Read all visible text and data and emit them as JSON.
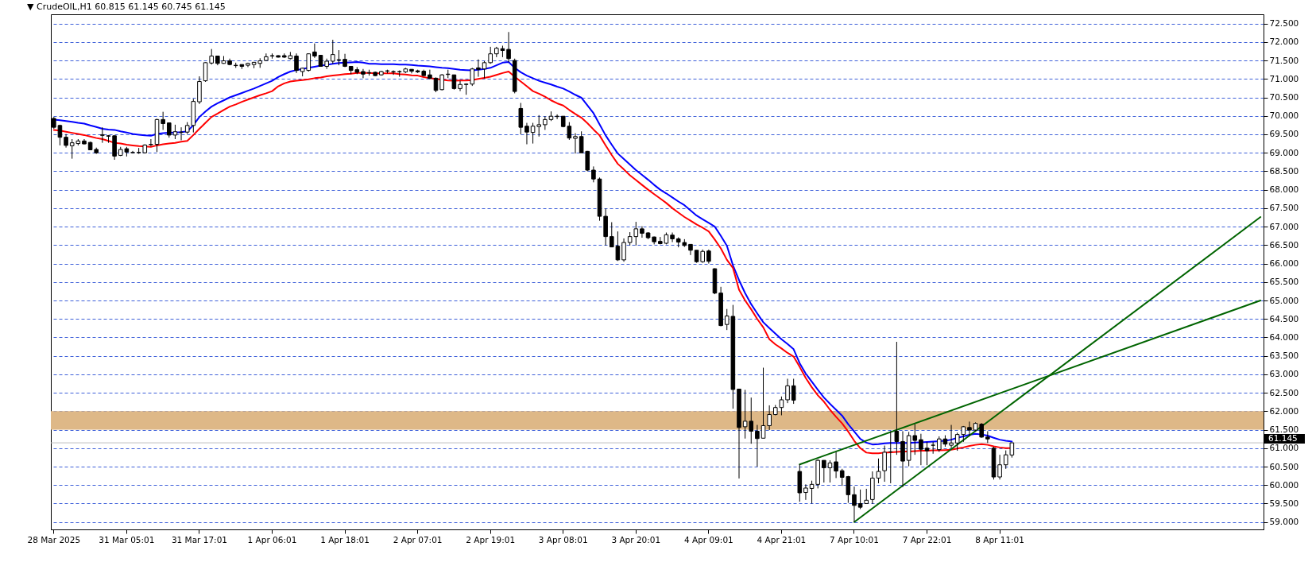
{
  "chart_data": {
    "type": "candlestick",
    "title": "▼ CrudeOIL,H1  60.815 61.145 60.745 61.145",
    "categories": [
      "28 Mar 2025",
      null,
      null,
      null,
      null,
      null,
      null,
      null,
      null,
      null,
      null,
      null,
      "31 Mar 05:01",
      null,
      null,
      null,
      null,
      null,
      null,
      null,
      null,
      null,
      null,
      null,
      "31 Mar 17:01",
      null,
      null,
      null,
      null,
      null,
      null,
      null,
      null,
      null,
      null,
      null,
      "1 Apr 06:01",
      null,
      null,
      null,
      null,
      null,
      null,
      null,
      null,
      null,
      null,
      null,
      "1 Apr 18:01",
      null,
      null,
      null,
      null,
      null,
      null,
      null,
      null,
      null,
      null,
      null,
      "2 Apr 07:01",
      null,
      null,
      null,
      null,
      null,
      null,
      null,
      null,
      null,
      null,
      null,
      "2 Apr 19:01",
      null,
      null,
      null,
      null,
      null,
      null,
      null,
      null,
      null,
      null,
      null,
      "3 Apr 08:01",
      null,
      null,
      null,
      null,
      null,
      null,
      null,
      null,
      null,
      null,
      null,
      "3 Apr 20:01",
      null,
      null,
      null,
      null,
      null,
      null,
      null,
      null,
      null,
      null,
      null,
      "4 Apr 09:01",
      null,
      null,
      null,
      null,
      null,
      null,
      null,
      null,
      null,
      null,
      null,
      "4 Apr 21:01",
      null,
      null,
      null,
      null,
      null,
      null,
      null,
      null,
      null,
      null,
      null,
      "7 Apr 10:01",
      null,
      null,
      null,
      null,
      null,
      null,
      null,
      null,
      null,
      null,
      null,
      "7 Apr 22:01",
      null,
      null,
      null,
      null,
      null,
      null,
      null,
      null,
      null,
      null,
      null,
      "8 Apr 11:01",
      null,
      null,
      null,
      null,
      null,
      null,
      null,
      null,
      null,
      null,
      null,
      null,
      null,
      null,
      null,
      null,
      null,
      null,
      null,
      null,
      null,
      null,
      null,
      null,
      null,
      null,
      null,
      null,
      null,
      null,
      null,
      null,
      null,
      null,
      null,
      null,
      null,
      null,
      null,
      null,
      null,
      null,
      null
    ],
    "ohlc": [
      [
        69.93,
        69.97,
        69.65,
        69.69
      ],
      [
        69.74,
        69.76,
        69.2,
        69.42
      ],
      [
        69.42,
        69.51,
        69.14,
        69.2
      ],
      [
        69.19,
        69.37,
        68.84,
        69.27
      ],
      [
        69.25,
        69.37,
        69.2,
        69.32
      ],
      [
        69.32,
        69.37,
        69.23,
        69.24
      ],
      [
        69.28,
        69.3,
        69.08,
        69.08
      ],
      [
        69.09,
        69.14,
        68.97,
        69.0
      ],
      [
        69.47,
        69.69,
        69.27,
        69.49
      ],
      [
        69.46,
        69.48,
        69.27,
        69.45
      ],
      [
        69.46,
        69.47,
        68.81,
        68.91
      ],
      [
        68.93,
        69.16,
        68.91,
        69.09
      ],
      [
        69.11,
        69.16,
        68.9,
        69.02
      ],
      [
        69.0,
        69.05,
        68.98,
        69.01
      ],
      [
        69.0,
        69.13,
        68.97,
        69.01
      ],
      [
        69.0,
        69.23,
        68.98,
        69.21
      ],
      [
        69.22,
        69.37,
        69.18,
        69.23
      ],
      [
        69.23,
        69.92,
        69.02,
        69.9
      ],
      [
        69.9,
        70.11,
        69.62,
        69.79
      ],
      [
        69.81,
        69.82,
        69.41,
        69.48
      ],
      [
        69.48,
        69.76,
        69.37,
        69.57
      ],
      [
        69.55,
        69.69,
        69.34,
        69.56
      ],
      [
        69.56,
        69.83,
        69.51,
        69.74
      ],
      [
        69.74,
        70.46,
        69.55,
        70.39
      ],
      [
        70.38,
        71.07,
        70.32,
        70.93
      ],
      [
        70.95,
        71.45,
        70.92,
        71.44
      ],
      [
        71.43,
        71.81,
        71.39,
        71.62
      ],
      [
        71.62,
        71.63,
        71.37,
        71.42
      ],
      [
        71.42,
        71.62,
        71.41,
        71.49
      ],
      [
        71.49,
        71.55,
        71.37,
        71.39
      ],
      [
        71.37,
        71.44,
        71.3,
        71.36
      ],
      [
        71.39,
        71.39,
        71.27,
        71.34
      ],
      [
        71.37,
        71.44,
        71.32,
        71.42
      ],
      [
        71.39,
        71.46,
        71.29,
        71.45
      ],
      [
        71.42,
        71.56,
        71.3,
        71.49
      ],
      [
        71.5,
        71.69,
        71.48,
        71.6
      ],
      [
        71.62,
        71.69,
        71.55,
        71.63
      ],
      [
        71.63,
        71.64,
        71.58,
        71.59
      ],
      [
        71.63,
        71.69,
        71.57,
        71.59
      ],
      [
        71.55,
        71.73,
        71.53,
        71.63
      ],
      [
        71.62,
        71.69,
        71.16,
        71.23
      ],
      [
        71.2,
        71.3,
        71.07,
        71.29
      ],
      [
        71.23,
        71.69,
        71.2,
        71.68
      ],
      [
        71.73,
        71.96,
        71.57,
        71.62
      ],
      [
        71.64,
        71.65,
        71.33,
        71.34
      ],
      [
        71.34,
        71.55,
        71.27,
        71.48
      ],
      [
        71.48,
        72.06,
        71.41,
        71.66
      ],
      [
        71.52,
        71.78,
        71.37,
        71.51
      ],
      [
        71.53,
        71.68,
        71.32,
        71.34
      ],
      [
        71.34,
        71.34,
        71.13,
        71.23
      ],
      [
        71.25,
        71.32,
        71.13,
        71.18
      ],
      [
        71.2,
        71.27,
        71.02,
        71.13
      ],
      [
        71.16,
        71.25,
        71.09,
        71.17
      ],
      [
        71.18,
        71.2,
        71.08,
        71.09
      ],
      [
        71.11,
        71.22,
        71.09,
        71.2
      ],
      [
        71.21,
        71.25,
        71.15,
        71.22
      ],
      [
        71.19,
        71.23,
        71.11,
        71.2
      ],
      [
        71.19,
        71.23,
        71.06,
        71.2
      ],
      [
        71.19,
        71.3,
        71.16,
        71.27
      ],
      [
        71.26,
        71.26,
        71.15,
        71.21
      ],
      [
        71.22,
        71.25,
        71.16,
        71.19
      ],
      [
        71.21,
        71.25,
        71.08,
        71.09
      ],
      [
        71.11,
        71.25,
        70.99,
        71.02
      ],
      [
        71.02,
        71.04,
        70.64,
        70.69
      ],
      [
        70.71,
        71.13,
        70.69,
        71.11
      ],
      [
        71.12,
        71.25,
        71.02,
        71.13
      ],
      [
        71.11,
        71.11,
        70.71,
        70.74
      ],
      [
        70.74,
        70.95,
        70.67,
        70.85
      ],
      [
        70.85,
        70.88,
        70.57,
        70.86
      ],
      [
        70.86,
        71.3,
        70.81,
        71.27
      ],
      [
        71.3,
        71.53,
        71.06,
        71.26
      ],
      [
        71.27,
        71.48,
        71.02,
        71.44
      ],
      [
        71.44,
        71.87,
        71.41,
        71.68
      ],
      [
        71.68,
        71.87,
        71.59,
        71.83
      ],
      [
        71.82,
        71.9,
        71.59,
        71.77
      ],
      [
        71.8,
        72.27,
        71.45,
        71.55
      ],
      [
        71.5,
        71.55,
        70.61,
        70.66
      ],
      [
        70.2,
        70.35,
        69.5,
        69.69
      ],
      [
        69.72,
        69.81,
        69.23,
        69.56
      ],
      [
        69.55,
        69.81,
        69.25,
        69.72
      ],
      [
        69.71,
        70.02,
        69.44,
        69.76
      ],
      [
        69.76,
        69.99,
        69.62,
        69.9
      ],
      [
        69.9,
        70.12,
        69.86,
        69.99
      ],
      [
        69.98,
        70.04,
        69.91,
        69.99
      ],
      [
        69.99,
        69.99,
        69.69,
        69.71
      ],
      [
        69.72,
        69.83,
        69.35,
        69.4
      ],
      [
        69.39,
        69.53,
        68.98,
        69.44
      ],
      [
        69.44,
        69.58,
        69.0,
        69.0
      ],
      [
        69.04,
        69.05,
        68.5,
        68.53
      ],
      [
        68.53,
        68.63,
        68.2,
        68.29
      ],
      [
        68.29,
        68.33,
        67.16,
        67.28
      ],
      [
        67.28,
        67.49,
        66.49,
        66.73
      ],
      [
        66.73,
        67.12,
        66.45,
        66.45
      ],
      [
        66.47,
        66.87,
        66.07,
        66.1
      ],
      [
        66.1,
        66.68,
        66.05,
        66.57
      ],
      [
        66.57,
        66.85,
        66.49,
        66.73
      ],
      [
        66.73,
        67.13,
        66.49,
        66.94
      ],
      [
        66.94,
        67.01,
        66.7,
        66.82
      ],
      [
        66.83,
        66.85,
        66.66,
        66.7
      ],
      [
        66.72,
        66.73,
        66.52,
        66.59
      ],
      [
        66.6,
        66.72,
        66.52,
        66.54
      ],
      [
        66.55,
        66.84,
        66.52,
        66.78
      ],
      [
        66.77,
        66.84,
        66.58,
        66.67
      ],
      [
        66.67,
        66.71,
        66.44,
        66.58
      ],
      [
        66.57,
        66.66,
        66.45,
        66.49
      ],
      [
        66.52,
        66.52,
        66.23,
        66.36
      ],
      [
        66.36,
        66.36,
        66.02,
        66.05
      ],
      [
        66.05,
        66.38,
        66.02,
        66.33
      ],
      [
        66.34,
        66.38,
        66.0,
        66.06
      ],
      [
        65.86,
        65.87,
        65.17,
        65.2
      ],
      [
        65.2,
        65.37,
        64.3,
        64.32
      ],
      [
        64.35,
        64.77,
        64.2,
        64.58
      ],
      [
        64.57,
        64.88,
        62.07,
        62.59
      ],
      [
        62.6,
        62.61,
        60.18,
        61.56
      ],
      [
        61.58,
        62.58,
        61.26,
        61.73
      ],
      [
        61.73,
        62.37,
        61.12,
        61.46
      ],
      [
        61.46,
        61.63,
        60.5,
        61.26
      ],
      [
        61.27,
        63.18,
        61.27,
        61.61
      ],
      [
        61.61,
        62.16,
        61.49,
        61.91
      ],
      [
        61.91,
        62.17,
        61.89,
        62.1
      ],
      [
        62.1,
        62.4,
        61.89,
        62.31
      ],
      [
        62.31,
        62.88,
        62.22,
        62.69
      ],
      [
        62.69,
        62.88,
        62.2,
        62.3
      ],
      [
        60.37,
        60.56,
        59.55,
        59.79
      ],
      [
        59.8,
        60.02,
        59.6,
        59.92
      ],
      [
        59.91,
        60.12,
        59.5,
        60.02
      ],
      [
        60.02,
        60.7,
        59.91,
        60.67
      ],
      [
        60.67,
        60.67,
        60.07,
        60.47
      ],
      [
        60.47,
        60.67,
        60.07,
        60.6
      ],
      [
        60.63,
        60.9,
        60.19,
        60.38
      ],
      [
        60.39,
        60.44,
        59.98,
        60.21
      ],
      [
        60.23,
        60.25,
        59.52,
        59.74
      ],
      [
        59.74,
        59.96,
        59.0,
        59.45
      ],
      [
        59.5,
        59.88,
        59.35,
        59.4
      ],
      [
        59.5,
        59.9,
        59.49,
        59.59
      ],
      [
        59.61,
        60.37,
        59.49,
        60.19
      ],
      [
        60.19,
        60.72,
        60.05,
        60.37
      ],
      [
        60.39,
        61.07,
        60.09,
        60.89
      ],
      [
        60.9,
        61.46,
        60.05,
        60.9
      ],
      [
        61.46,
        63.88,
        60.82,
        61.18
      ],
      [
        61.18,
        61.46,
        59.95,
        60.65
      ],
      [
        60.67,
        61.44,
        60.51,
        61.34
      ],
      [
        61.34,
        61.65,
        60.82,
        61.21
      ],
      [
        61.23,
        61.39,
        60.54,
        60.97
      ],
      [
        61.0,
        61.17,
        60.54,
        60.93
      ],
      [
        61.08,
        61.17,
        60.85,
        61.08
      ],
      [
        60.96,
        61.32,
        60.9,
        61.25
      ],
      [
        61.25,
        61.35,
        61.04,
        61.11
      ],
      [
        61.08,
        61.63,
        61.0,
        61.14
      ],
      [
        61.14,
        61.42,
        60.93,
        61.37
      ],
      [
        61.37,
        61.6,
        61.17,
        61.58
      ],
      [
        61.56,
        61.72,
        61.32,
        61.49
      ],
      [
        61.49,
        61.7,
        61.46,
        61.67
      ],
      [
        61.65,
        61.68,
        61.28,
        61.3
      ],
      [
        61.3,
        61.46,
        61.14,
        61.25
      ],
      [
        61.0,
        61.04,
        60.15,
        60.22
      ],
      [
        60.22,
        60.82,
        60.15,
        60.55
      ],
      [
        60.55,
        60.94,
        60.44,
        60.82
      ],
      [
        60.815,
        61.145,
        60.745,
        61.145
      ],
      null,
      null,
      null,
      null,
      null,
      null,
      null,
      null,
      null,
      null,
      null,
      null,
      null,
      null,
      null,
      null,
      null,
      null,
      null,
      null,
      null,
      null,
      null,
      null,
      null,
      null,
      null,
      null,
      null,
      null,
      null,
      null,
      null,
      null,
      null,
      null,
      null,
      null,
      null,
      null,
      null
    ],
    "series": [
      {
        "type": "line",
        "color": "#0000ff",
        "values": [
          69.9,
          69.88,
          69.86,
          69.84,
          69.81,
          69.79,
          69.74,
          69.7,
          69.65,
          69.63,
          69.62,
          69.58,
          69.55,
          69.51,
          69.49,
          69.47,
          69.46,
          69.51,
          69.53,
          69.54,
          69.55,
          69.56,
          69.58,
          69.75,
          69.97,
          70.12,
          70.25,
          70.34,
          70.42,
          70.5,
          70.56,
          70.62,
          70.68,
          70.74,
          70.81,
          70.88,
          70.95,
          71.05,
          71.13,
          71.2,
          71.24,
          71.27,
          71.3,
          71.33,
          71.36,
          71.38,
          71.41,
          71.43,
          71.44,
          71.45,
          71.46,
          71.44,
          71.41,
          71.41,
          71.4,
          71.4,
          71.4,
          71.39,
          71.39,
          71.38,
          71.36,
          71.35,
          71.34,
          71.32,
          71.3,
          71.29,
          71.27,
          71.25,
          71.24,
          71.23,
          71.25,
          71.27,
          71.3,
          71.37,
          71.44,
          71.46,
          71.3,
          71.18,
          71.09,
          71.02,
          70.95,
          70.9,
          70.85,
          70.79,
          70.74,
          70.66,
          70.57,
          70.49,
          70.28,
          70.07,
          69.77,
          69.47,
          69.22,
          68.98,
          68.83,
          68.68,
          68.53,
          68.4,
          68.27,
          68.13,
          68.0,
          67.9,
          67.79,
          67.68,
          67.58,
          67.44,
          67.3,
          67.2,
          67.1,
          67.0,
          66.75,
          66.48,
          65.95,
          65.55,
          65.2,
          64.9,
          64.65,
          64.41,
          64.25,
          64.1,
          63.95,
          63.82,
          63.68,
          63.3,
          63.02,
          62.8,
          62.58,
          62.37,
          62.2,
          62.04,
          61.88,
          61.65,
          61.45,
          61.25,
          61.15,
          61.1,
          61.11,
          61.13,
          61.14,
          61.14,
          61.14,
          61.14,
          61.15,
          61.16,
          61.17,
          61.18,
          61.19,
          61.2,
          61.23,
          61.28,
          61.32,
          61.36,
          61.39,
          61.37,
          61.34,
          61.28,
          61.23,
          61.2,
          61.18,
          null,
          null,
          null,
          null,
          null,
          null,
          null,
          null,
          null,
          null,
          null,
          null,
          null,
          null,
          null,
          null,
          null,
          null,
          null,
          null,
          null,
          null,
          null,
          null,
          null,
          null,
          null,
          null,
          null,
          null,
          null,
          null,
          null,
          null,
          null,
          null,
          null,
          null,
          null,
          null,
          null
        ]
      },
      {
        "type": "line",
        "color": "#ff0000",
        "values": [
          69.62,
          69.6,
          69.57,
          69.54,
          69.51,
          69.48,
          69.44,
          69.4,
          69.37,
          69.32,
          69.27,
          69.25,
          69.22,
          69.2,
          69.18,
          69.17,
          69.16,
          69.2,
          69.23,
          69.25,
          69.27,
          69.3,
          69.32,
          69.48,
          69.65,
          69.81,
          69.97,
          70.06,
          70.16,
          70.25,
          70.31,
          70.38,
          70.44,
          70.5,
          70.56,
          70.61,
          70.67,
          70.8,
          70.88,
          70.93,
          70.95,
          70.97,
          70.99,
          71.02,
          71.04,
          71.07,
          71.09,
          71.11,
          71.13,
          71.14,
          71.16,
          71.16,
          71.16,
          71.15,
          71.15,
          71.15,
          71.15,
          71.13,
          71.12,
          71.1,
          71.09,
          71.05,
          71.02,
          71.0,
          70.98,
          70.96,
          70.95,
          70.96,
          70.96,
          70.97,
          71.0,
          71.03,
          71.06,
          71.11,
          71.16,
          71.2,
          71.06,
          70.93,
          70.8,
          70.67,
          70.6,
          70.52,
          70.42,
          70.34,
          70.28,
          70.16,
          70.05,
          69.95,
          69.8,
          69.63,
          69.47,
          69.2,
          68.94,
          68.7,
          68.55,
          68.39,
          68.26,
          68.13,
          68.0,
          67.88,
          67.76,
          67.64,
          67.5,
          67.38,
          67.26,
          67.16,
          67.06,
          66.97,
          66.87,
          66.65,
          66.41,
          66.1,
          65.88,
          65.29,
          65.0,
          64.76,
          64.5,
          64.27,
          63.95,
          63.81,
          63.7,
          63.58,
          63.48,
          63.2,
          62.9,
          62.65,
          62.43,
          62.26,
          62.04,
          61.85,
          61.67,
          61.45,
          61.2,
          61.0,
          60.88,
          60.86,
          60.86,
          60.88,
          60.89,
          60.9,
          60.91,
          60.91,
          60.92,
          60.93,
          60.93,
          60.94,
          60.94,
          60.95,
          60.96,
          60.99,
          61.02,
          61.06,
          61.09,
          61.11,
          61.09,
          61.05,
          61.02,
          61.0,
          61.0,
          null,
          null,
          null,
          null,
          null,
          null,
          null,
          null,
          null,
          null,
          null,
          null,
          null,
          null,
          null,
          null,
          null,
          null,
          null,
          null,
          null,
          null,
          null,
          null,
          null,
          null,
          null,
          null,
          null,
          null,
          null,
          null,
          null,
          null,
          null,
          null,
          null,
          null,
          null,
          null,
          null
        ]
      },
      {
        "type": "line",
        "color": "#006400",
        "values": [
          null,
          null,
          null,
          null,
          null,
          null,
          null,
          null,
          null,
          null,
          null,
          null,
          null,
          null,
          null,
          null,
          null,
          null,
          null,
          null,
          null,
          null,
          null,
          null,
          null,
          null,
          null,
          null,
          null,
          null,
          null,
          null,
          null,
          null,
          null,
          null,
          null,
          null,
          null,
          null,
          null,
          null,
          null,
          null,
          null,
          null,
          null,
          null,
          null,
          null,
          null,
          null,
          null,
          null,
          null,
          null,
          null,
          null,
          null,
          null,
          null,
          null,
          null,
          null,
          null,
          null,
          null,
          null,
          null,
          null,
          null,
          null,
          null,
          null,
          null,
          null,
          null,
          null,
          null,
          null,
          null,
          null,
          null,
          null,
          null,
          null,
          null,
          null,
          null,
          null,
          null,
          null,
          null,
          null,
          null,
          null,
          null,
          null,
          null,
          null,
          null,
          null,
          null,
          null,
          null,
          null,
          null,
          null,
          null,
          null,
          null,
          null,
          null,
          null,
          null,
          null,
          null,
          null,
          null,
          null,
          null,
          null,
          null,
          60.56,
          null,
          null,
          null,
          null,
          null,
          null,
          null,
          null,
          null,
          null,
          null,
          null,
          null,
          null,
          null,
          null,
          null,
          null,
          null,
          null,
          null,
          null,
          null,
          null,
          null,
          null,
          null,
          null,
          null,
          null,
          null,
          null,
          null,
          null,
          null,
          null,
          null,
          null,
          null,
          null,
          null,
          null,
          null,
          null,
          null,
          null,
          null,
          null,
          null,
          null,
          null,
          null,
          null,
          null,
          null,
          null,
          null,
          null,
          null,
          null,
          null,
          null,
          null,
          null,
          null,
          null,
          null,
          null,
          null,
          null,
          null,
          null,
          null,
          null,
          null,
          65.0
        ]
      },
      {
        "type": "line",
        "color": "#006400",
        "values": [
          null,
          null,
          null,
          null,
          null,
          null,
          null,
          null,
          null,
          null,
          null,
          null,
          null,
          null,
          null,
          null,
          null,
          null,
          null,
          null,
          null,
          null,
          null,
          null,
          null,
          null,
          null,
          null,
          null,
          null,
          null,
          null,
          null,
          null,
          null,
          null,
          null,
          null,
          null,
          null,
          null,
          null,
          null,
          null,
          null,
          null,
          null,
          null,
          null,
          null,
          null,
          null,
          null,
          null,
          null,
          null,
          null,
          null,
          null,
          null,
          null,
          null,
          null,
          null,
          null,
          null,
          null,
          null,
          null,
          null,
          null,
          null,
          null,
          null,
          null,
          null,
          null,
          null,
          null,
          null,
          null,
          null,
          null,
          null,
          null,
          null,
          null,
          null,
          null,
          null,
          null,
          null,
          null,
          null,
          null,
          null,
          null,
          null,
          null,
          null,
          null,
          null,
          null,
          null,
          null,
          null,
          null,
          null,
          null,
          null,
          null,
          null,
          null,
          null,
          null,
          null,
          null,
          null,
          null,
          null,
          null,
          null,
          null,
          null,
          null,
          null,
          null,
          null,
          null,
          null,
          null,
          null,
          59.0,
          null,
          null,
          null,
          null,
          null,
          null,
          null,
          null,
          null,
          null,
          null,
          null,
          null,
          null,
          null,
          null,
          null,
          null,
          null,
          null,
          null,
          null,
          null,
          null,
          null,
          null,
          null,
          null,
          null,
          null,
          null,
          null,
          null,
          null,
          null,
          null,
          null,
          null,
          null,
          null,
          null,
          null,
          null,
          null,
          null,
          null,
          null,
          null,
          null,
          null,
          null,
          null,
          null,
          null,
          null,
          null,
          null,
          null,
          null,
          null,
          null,
          null,
          null,
          null,
          null,
          null,
          67.26
        ]
      }
    ],
    "ylim": [
      58.8,
      72.75
    ],
    "yticks": [
      {
        "value": 59,
        "label": "59.000"
      },
      {
        "value": 59.5,
        "label": "59.500"
      },
      {
        "value": 60,
        "label": "60.000"
      },
      {
        "value": 60.5,
        "label": "60.500"
      },
      {
        "value": 61,
        "label": "61.000"
      },
      {
        "value": 61.5,
        "label": "61.500"
      },
      {
        "value": 62,
        "label": "62.000"
      },
      {
        "value": 62.5,
        "label": "62.500"
      },
      {
        "value": 63,
        "label": "63.000"
      },
      {
        "value": 63.5,
        "label": "63.500"
      },
      {
        "value": 64,
        "label": "64.000"
      },
      {
        "value": 64.5,
        "label": "64.500"
      },
      {
        "value": 65,
        "label": "65.000"
      },
      {
        "value": 65.5,
        "label": "65.500"
      },
      {
        "value": 66,
        "label": "66.000"
      },
      {
        "value": 66.5,
        "label": "66.500"
      },
      {
        "value": 67,
        "label": "67.000"
      },
      {
        "value": 67.5,
        "label": "67.500"
      },
      {
        "value": 68,
        "label": "68.000"
      },
      {
        "value": 68.5,
        "label": "68.500"
      },
      {
        "value": 69,
        "label": "69.000"
      },
      {
        "value": 69.5,
        "label": "69.500"
      },
      {
        "value": 70,
        "label": "70.000"
      },
      {
        "value": 70.5,
        "label": "70.500"
      },
      {
        "value": 71,
        "label": "71.000"
      },
      {
        "value": 71.5,
        "label": "71.500"
      },
      {
        "value": 72,
        "label": "72.000"
      },
      {
        "value": 72.5,
        "label": "72.500"
      }
    ],
    "grid": "y",
    "bands": [
      {
        "axis": "y",
        "from": 61.5,
        "to": 62.0,
        "color": "#deb887"
      }
    ],
    "ref_lines": [
      {
        "axis": "y",
        "value": 61.145,
        "label": "61.145",
        "color": "#c0c0c0"
      }
    ]
  }
}
